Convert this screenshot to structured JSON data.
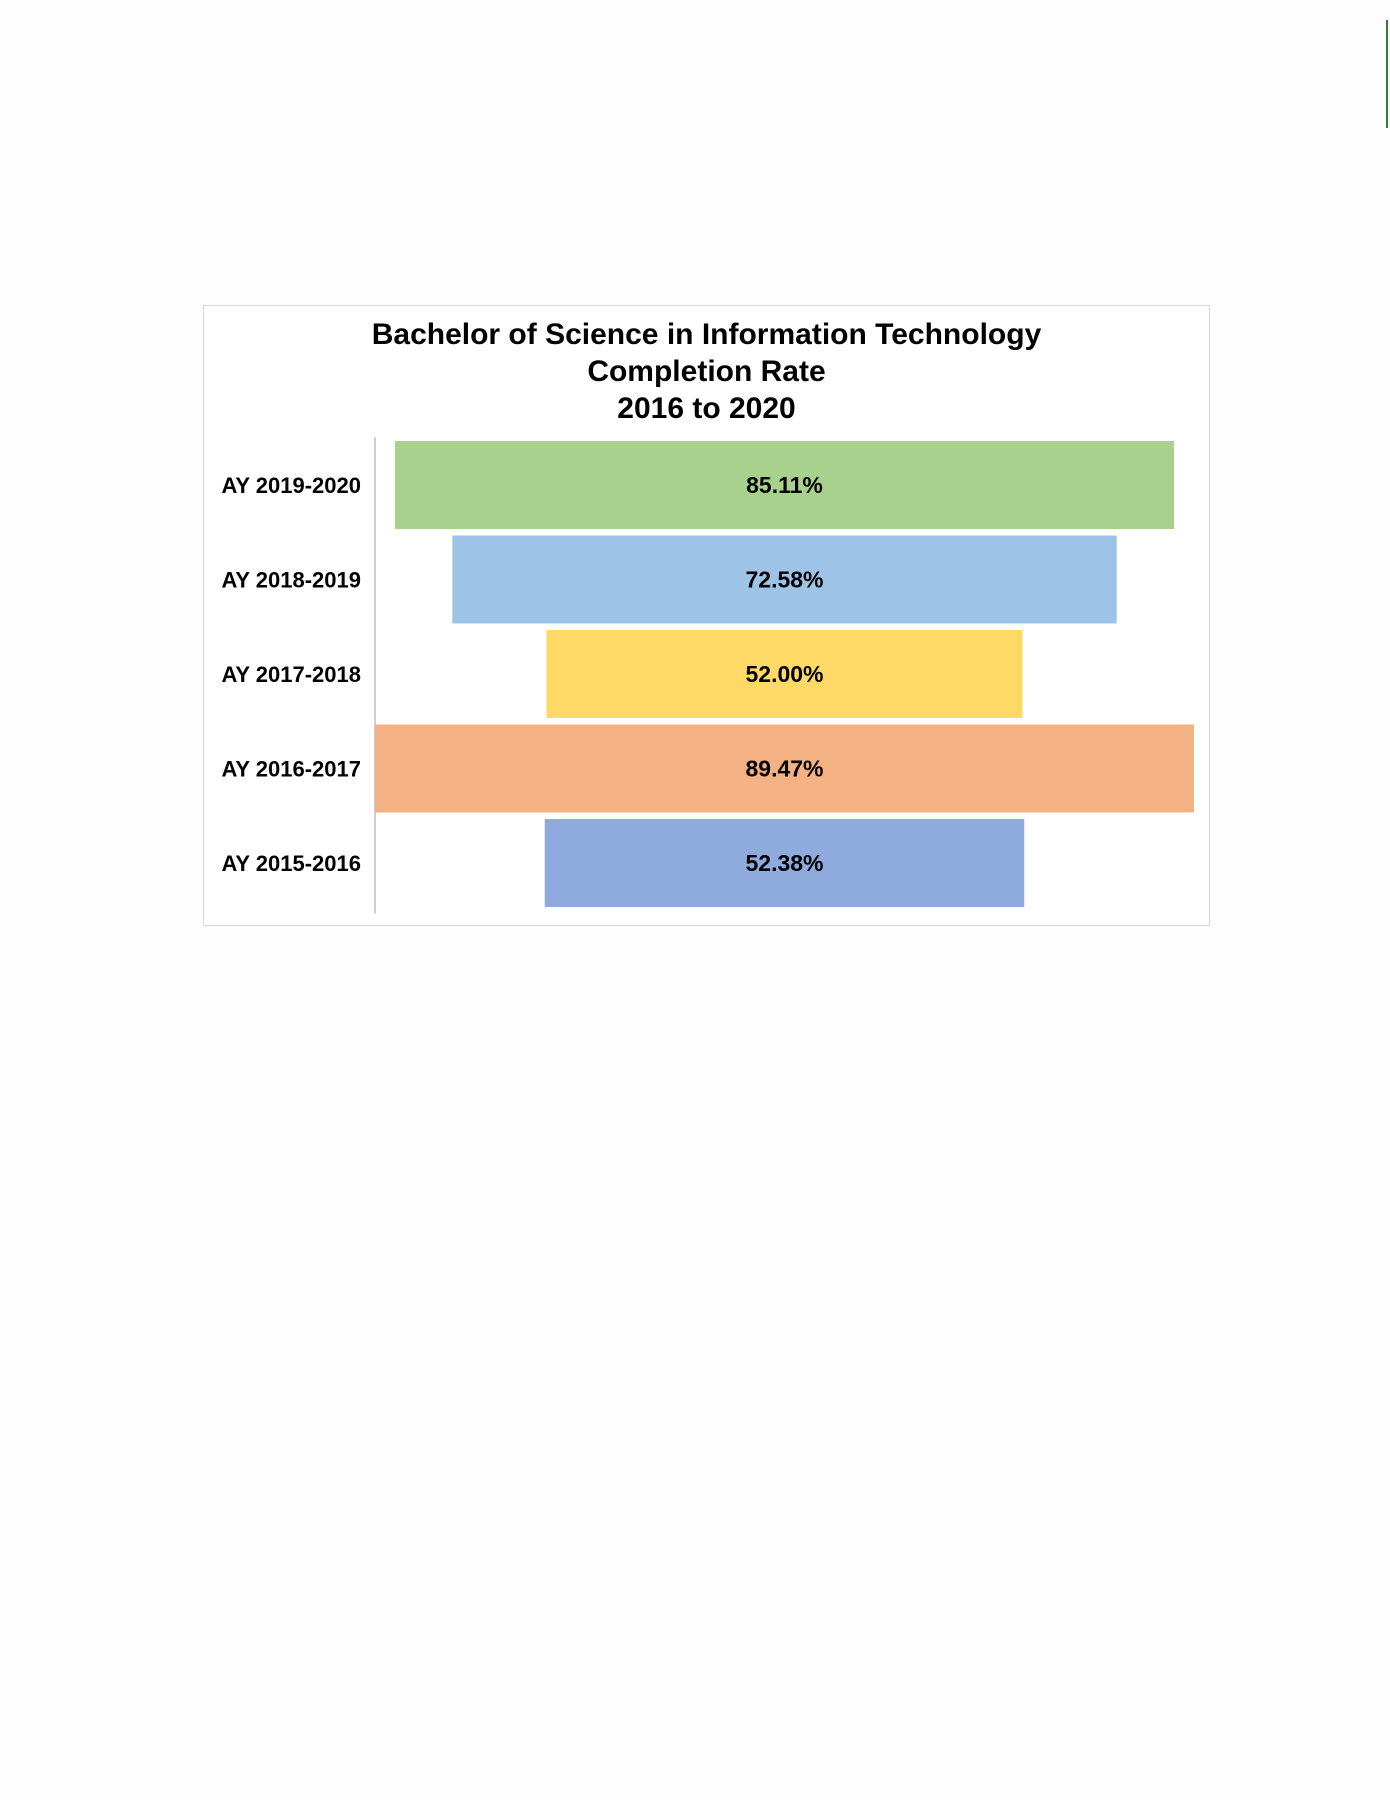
{
  "page": {
    "accent_color": "#2e7d32"
  },
  "chart_data": {
    "type": "funnel",
    "title_lines": [
      "Bachelor of Science in Information Technology",
      "Completion Rate",
      "2016 to 2020"
    ],
    "categories": [
      "AY 2019-2020",
      "AY 2018-2019",
      "AY 2017-2018",
      "AY 2016-2017",
      "AY 2015-2016"
    ],
    "values": [
      85.11,
      72.58,
      52.0,
      89.47,
      52.38
    ],
    "value_labels": [
      "85.11%",
      "72.58%",
      "52.00%",
      "89.47%",
      "52.38%"
    ],
    "colors": [
      "#a9d18e",
      "#9dc3e6",
      "#ffd966",
      "#f4b183",
      "#8faadc"
    ],
    "xlabel": "",
    "ylabel": "",
    "grid": false,
    "legend": "none"
  }
}
